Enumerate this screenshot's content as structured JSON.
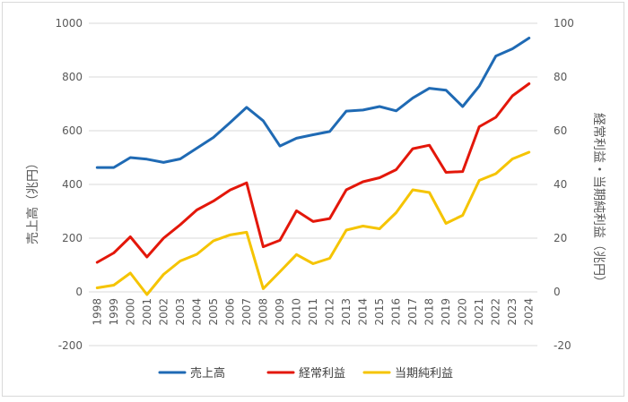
{
  "chart_data": {
    "type": "line",
    "x": [
      "1998",
      "1999",
      "2000",
      "2001",
      "2002",
      "2003",
      "2004",
      "2005",
      "2006",
      "2007",
      "2008",
      "2009",
      "2010",
      "2011",
      "2012",
      "2013",
      "2014",
      "2015",
      "2016",
      "2017",
      "2018",
      "2019",
      "2020",
      "2021",
      "2022",
      "2023",
      "2024"
    ],
    "series": [
      {
        "name": "売上高",
        "axis": "left",
        "color": "#1f6ab4",
        "values": [
          463,
          463,
          500,
          494,
          482,
          495,
          535,
          575,
          630,
          687,
          637,
          543,
          572,
          585,
          597,
          673,
          677,
          690,
          674,
          722,
          758,
          751,
          690,
          766,
          878,
          905,
          945
        ]
      },
      {
        "name": "経常利益",
        "axis": "right",
        "color": "#e3170a",
        "values": [
          11,
          14.5,
          20.5,
          13,
          20,
          25,
          30.5,
          33.8,
          37.9,
          40.6,
          16.8,
          19.2,
          30.2,
          26.2,
          27.3,
          38,
          41,
          42.5,
          45.5,
          53.3,
          54.6,
          44.5,
          44.8,
          61.5,
          65,
          73,
          77.5
        ]
      },
      {
        "name": "当期純利益",
        "axis": "right",
        "color": "#f5c400",
        "values": [
          1.5,
          2.5,
          7,
          -1,
          6.5,
          11.5,
          14,
          19,
          21.2,
          22.2,
          1.2,
          7.5,
          13.9,
          10.5,
          12.5,
          23,
          24.5,
          23.5,
          29.5,
          38,
          37,
          25.5,
          28.5,
          41.5,
          44,
          49.5,
          52
        ]
      }
    ],
    "ylabel": "売上高（兆円）",
    "y2label": "経常利益・当期純利益（兆円）",
    "ylim": [
      -200,
      1000
    ],
    "y2lim": [
      -20,
      100
    ],
    "yticks": [
      "1000",
      "800",
      "600",
      "400",
      "200",
      "0",
      "-200"
    ],
    "y2ticks": [
      "100",
      "80",
      "60",
      "40",
      "20",
      "0",
      "-20"
    ],
    "grid": true,
    "legend": "bottom"
  }
}
